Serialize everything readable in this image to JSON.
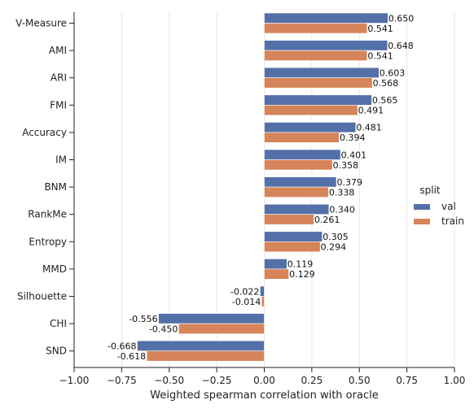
{
  "chart_data": {
    "type": "bar",
    "orientation": "horizontal",
    "categories": [
      "V-Measure",
      "AMI",
      "ARI",
      "FMI",
      "Accuracy",
      "IM",
      "BNM",
      "RankMe",
      "Entropy",
      "MMD",
      "Silhouette",
      "CHI",
      "SND"
    ],
    "series": [
      {
        "name": "val",
        "color": "#5470a8",
        "values": [
          0.65,
          0.648,
          0.603,
          0.565,
          0.481,
          0.401,
          0.379,
          0.34,
          0.305,
          0.119,
          -0.022,
          -0.556,
          -0.668
        ],
        "labels": [
          "0.650",
          "0.648",
          "0.603",
          "0.565",
          "0.481",
          "0.401",
          "0.379",
          "0.340",
          "0.305",
          "0.119",
          "-0.022",
          "-0.556",
          "-0.668"
        ]
      },
      {
        "name": "train",
        "color": "#d6845a",
        "values": [
          0.541,
          0.541,
          0.568,
          0.491,
          0.394,
          0.358,
          0.338,
          0.261,
          0.294,
          0.129,
          -0.014,
          -0.45,
          -0.618
        ],
        "labels": [
          "0.541",
          "0.541",
          "0.568",
          "0.491",
          "0.394",
          "0.358",
          "0.338",
          "0.261",
          "0.294",
          "0.129",
          "-0.014",
          "-0.450",
          "-0.618"
        ]
      }
    ],
    "xlabel": "Weighted spearman correlation with oracle",
    "ylabel": "",
    "xlim": [
      -1.0,
      1.0
    ],
    "xticks": [
      -1.0,
      -0.75,
      -0.5,
      -0.25,
      0.0,
      0.25,
      0.5,
      0.75,
      1.0
    ],
    "xtick_labels": [
      "−1.00",
      "−0.75",
      "−0.50",
      "−0.25",
      "0.00",
      "0.25",
      "0.50",
      "0.75",
      "1.00"
    ],
    "grid": "vertical",
    "legend": {
      "title": "split",
      "placement": "right"
    }
  }
}
